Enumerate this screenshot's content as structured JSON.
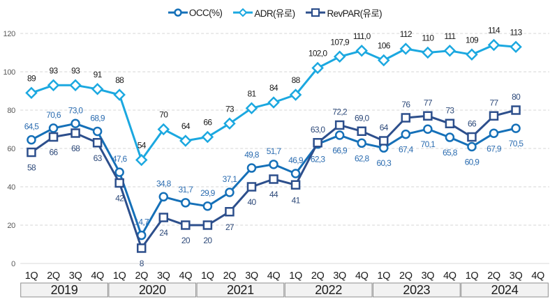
{
  "chart_data": {
    "type": "line",
    "title": "",
    "xlabel": "",
    "ylabel": "",
    "ylim": [
      0,
      120
    ],
    "yticks": [
      0,
      20,
      40,
      60,
      80,
      100,
      120
    ],
    "grid": "horizontal dashed",
    "legend": {
      "placement": "top-center"
    },
    "years": [
      "2019",
      "2020",
      "2021",
      "2022",
      "2023",
      "2024"
    ],
    "quarters": [
      "1Q",
      "2Q",
      "3Q",
      "4Q"
    ],
    "categories": [
      "2019 1Q",
      "2019 2Q",
      "2019 3Q",
      "2019 4Q",
      "2020 1Q",
      "2020 2Q",
      "2020 3Q",
      "2020 4Q",
      "2021 1Q",
      "2021 2Q",
      "2021 3Q",
      "2021 4Q",
      "2022 1Q",
      "2022 2Q",
      "2022 3Q",
      "2022 4Q",
      "2023 1Q",
      "2023 2Q",
      "2023 3Q",
      "2023 4Q",
      "2024 1Q",
      "2024 2Q",
      "2024 3Q",
      "2024 4Q"
    ],
    "series": [
      {
        "name": "OCC(%)",
        "marker": "circle",
        "color": "#1570b8",
        "label_color": "#2b6cb0",
        "values": [
          64.5,
          70.6,
          73.0,
          68.9,
          47.6,
          14.7,
          34.8,
          31.7,
          29.9,
          37.1,
          49.8,
          51.7,
          46.9,
          62.3,
          66.9,
          62.8,
          60.3,
          67.4,
          70.1,
          65.8,
          60.9,
          67.9,
          70.5,
          null
        ],
        "labels": [
          "64,5",
          "70,6",
          "73,0",
          "68,9",
          "47,6",
          "14,7",
          "34,8",
          "31,7",
          "29,9",
          "37,1",
          "49,8",
          "51,7",
          "46,9",
          "62,3",
          "66,9",
          "62,8",
          "60,3",
          "67,4",
          "70,1",
          "65,8",
          "60,9",
          "67,9",
          "70,5",
          ""
        ],
        "label_pos": [
          "above",
          "above",
          "above",
          "above",
          "above",
          "above",
          "above",
          "above",
          "above",
          "above",
          "above",
          "above",
          "above",
          "below",
          "below",
          "below",
          "below",
          "below",
          "below",
          "below",
          "below",
          "below",
          "below",
          ""
        ]
      },
      {
        "name": "ADR(유로)",
        "marker": "diamond",
        "color": "#1ba8e0",
        "label_color": "#1a1a1a",
        "values": [
          89,
          93,
          93,
          91,
          88,
          54,
          70,
          64,
          66,
          73,
          81,
          84,
          88,
          102.0,
          107.9,
          111.0,
          106,
          112,
          110,
          111,
          109,
          114,
          113,
          null
        ],
        "labels": [
          "89",
          "93",
          "93",
          "91",
          "88",
          "54",
          "70",
          "64",
          "66",
          "73",
          "81",
          "84",
          "88",
          "102,0",
          "107,9",
          "111,0",
          "106",
          "112",
          "110",
          "111",
          "109",
          "114",
          "113",
          ""
        ],
        "label_pos": [
          "above",
          "above",
          "above",
          "above",
          "above",
          "above",
          "above",
          "above",
          "above",
          "above",
          "above",
          "above",
          "above",
          "above",
          "above",
          "above",
          "above",
          "above",
          "above",
          "above",
          "above",
          "above",
          "above",
          ""
        ]
      },
      {
        "name": "RevPAR(유로)",
        "marker": "square",
        "color": "#2d4f8c",
        "label_color": "#2e4a7a",
        "values": [
          58,
          66,
          68,
          63,
          42,
          8,
          24,
          20,
          20,
          27,
          40,
          44,
          41,
          63.0,
          72.2,
          69.0,
          64,
          76,
          77,
          73,
          66,
          77,
          80,
          null
        ],
        "labels": [
          "58",
          "66",
          "68",
          "63",
          "42",
          "8",
          "24",
          "20",
          "20",
          "27",
          "40",
          "44",
          "41",
          "63,0",
          "72,2",
          "69,0",
          "64",
          "76",
          "77",
          "73",
          "66",
          "77",
          "80",
          ""
        ],
        "label_pos": [
          "below",
          "below",
          "below",
          "below",
          "below",
          "below",
          "below",
          "below",
          "below",
          "below",
          "below",
          "below",
          "below",
          "above",
          "above",
          "above",
          "above",
          "above",
          "above",
          "above",
          "above",
          "above",
          "above",
          ""
        ]
      }
    ]
  }
}
